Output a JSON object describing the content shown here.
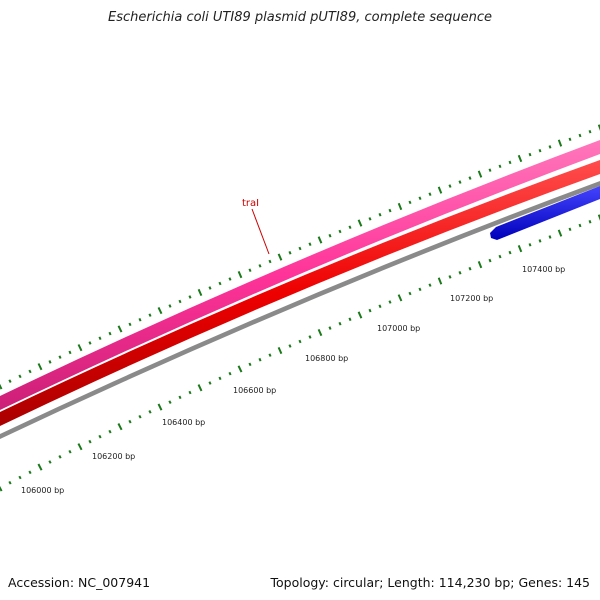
{
  "title": "Escherichia coli UTI89 plasmid pUTI89, complete sequence",
  "footer": {
    "accession": "Accession: NC_007941",
    "summary": "Topology: circular; Length: 114,230 bp; Genes: 145"
  },
  "colors": {
    "forward_gene": "#ff3399",
    "cds_red": "#ee0000",
    "backbone": "#8a8a8a",
    "reverse_gene": "#0000ee",
    "ticks": "#1a7a1a",
    "gene_label": "#cc0000"
  },
  "gene_label": "traI",
  "scale_labels": [
    "106000 bp",
    "106200 bp",
    "106400 bp",
    "106600 bp",
    "106800 bp",
    "107000 bp",
    "107200 bp",
    "107400 bp"
  ]
}
